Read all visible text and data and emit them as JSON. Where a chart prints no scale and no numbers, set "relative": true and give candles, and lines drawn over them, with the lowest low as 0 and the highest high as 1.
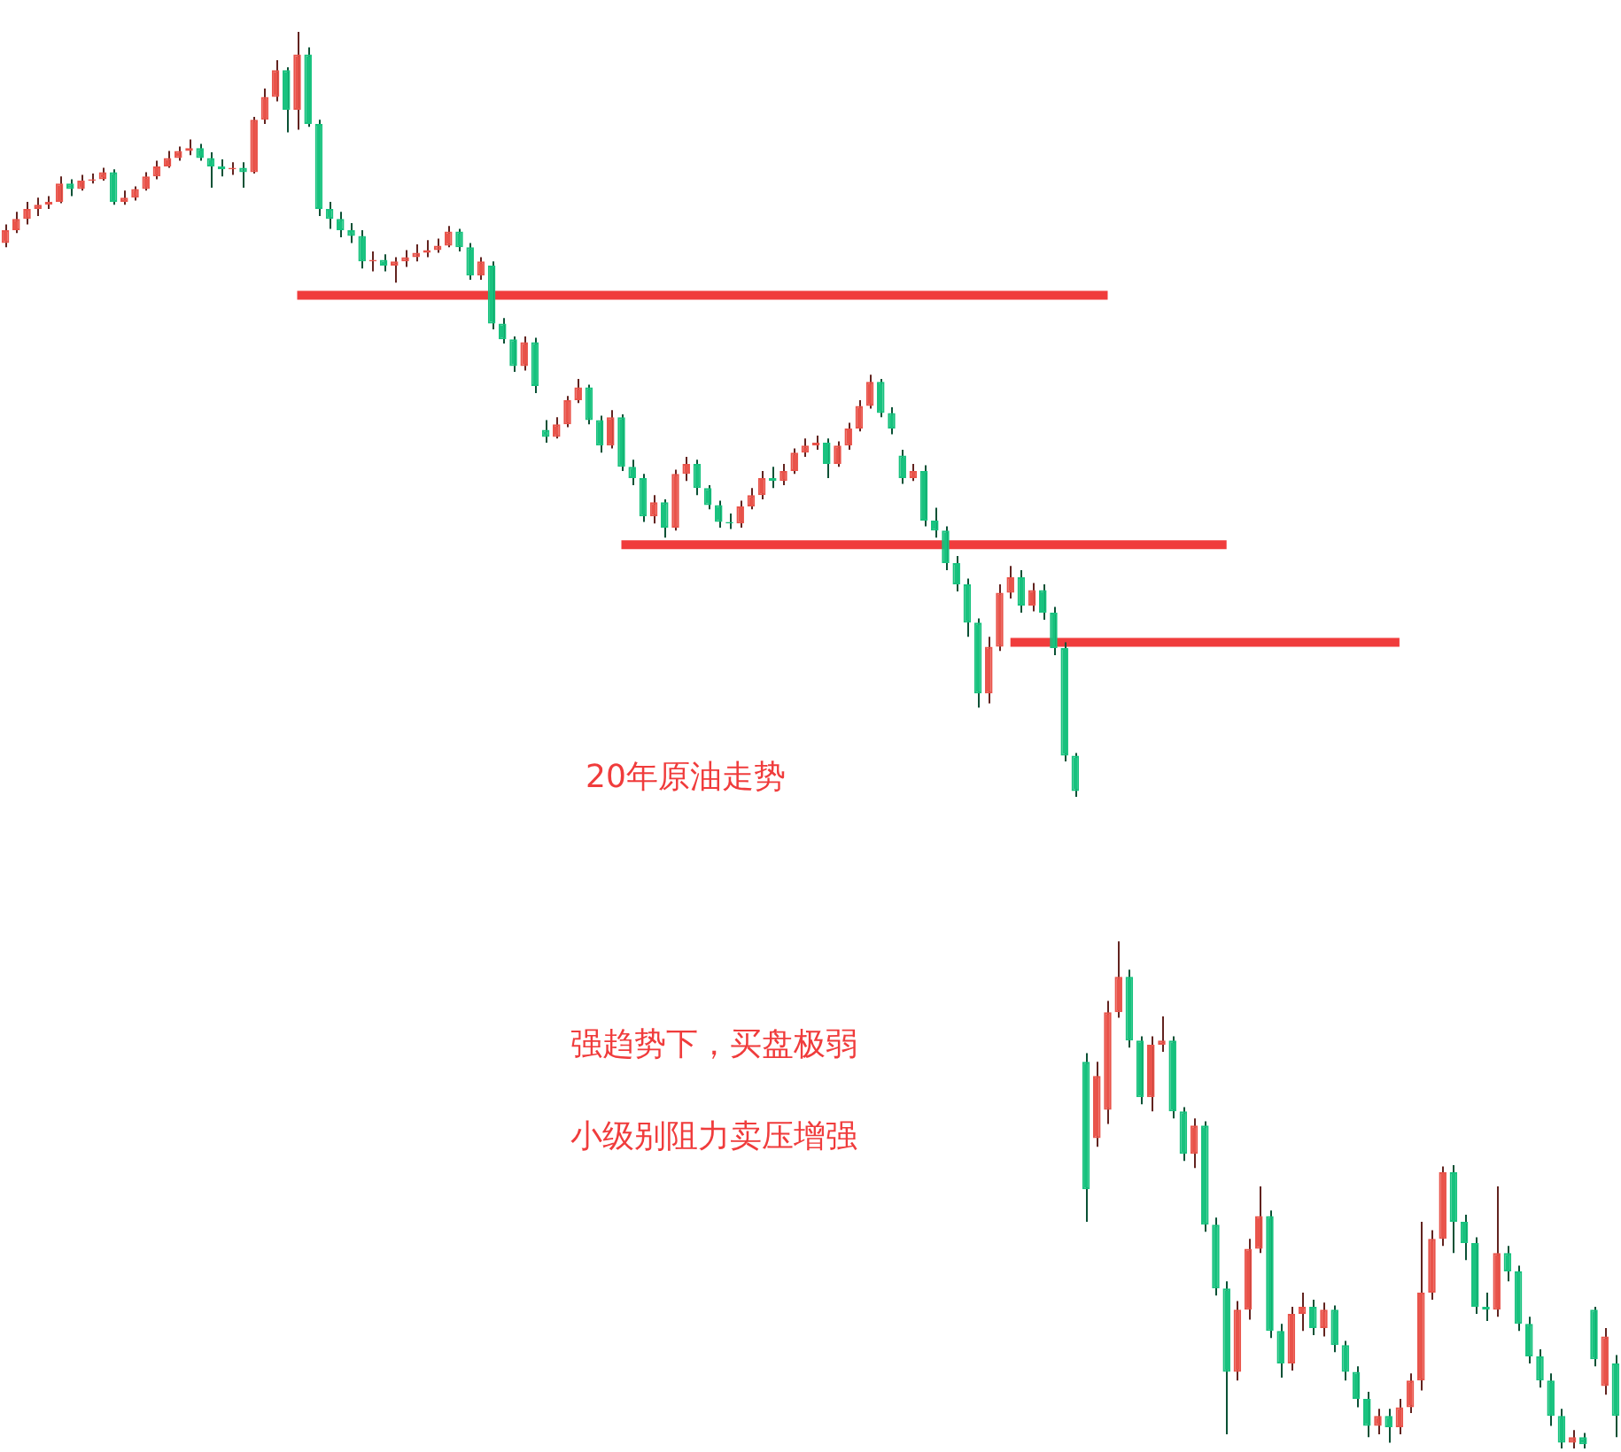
{
  "chart_data": {
    "type": "candlestick",
    "relative": true,
    "categories": [
      null,
      null,
      null,
      null,
      null,
      null,
      null,
      null,
      null,
      null,
      null,
      null,
      null,
      null,
      null,
      null,
      null,
      null,
      null,
      null,
      null,
      null,
      null,
      null,
      null,
      null,
      null,
      null,
      null,
      null,
      null,
      null,
      null,
      null,
      null,
      null,
      null,
      null,
      null,
      null,
      null,
      null,
      null,
      null,
      null,
      null,
      null,
      null,
      null,
      null,
      null,
      null,
      null,
      null,
      null,
      null,
      null,
      null,
      null,
      null,
      null,
      null,
      null,
      null,
      null,
      null,
      null,
      null,
      null,
      null,
      null,
      null,
      null,
      null,
      null,
      null,
      null,
      null,
      null,
      null,
      null,
      null,
      null,
      null,
      null,
      null,
      null,
      null,
      null,
      null,
      null,
      null,
      null,
      null,
      null,
      null,
      null,
      null,
      null,
      null,
      null,
      null,
      null,
      null,
      null,
      null,
      null,
      null,
      null,
      null,
      null,
      null,
      null,
      null,
      null,
      null,
      null,
      null,
      null,
      null,
      null,
      null,
      null,
      null,
      null,
      null,
      null,
      null,
      null,
      null,
      null,
      null,
      null,
      null,
      null,
      null,
      null,
      null,
      null,
      null,
      null,
      null,
      null,
      null,
      null,
      null,
      null,
      null,
      null,
      null
    ],
    "ohlc": [
      [
        0.851,
        0.864,
        0.848,
        0.86
      ],
      [
        0.86,
        0.873,
        0.858,
        0.868
      ],
      [
        0.868,
        0.88,
        0.864,
        0.875
      ],
      [
        0.875,
        0.883,
        0.87,
        0.878
      ],
      [
        0.878,
        0.884,
        0.875,
        0.88
      ],
      [
        0.88,
        0.898,
        0.879,
        0.893
      ],
      [
        0.893,
        0.896,
        0.884,
        0.889
      ],
      [
        0.889,
        0.899,
        0.888,
        0.895
      ],
      [
        0.895,
        0.9,
        0.893,
        0.896
      ],
      [
        0.896,
        0.904,
        0.895,
        0.901
      ],
      [
        0.901,
        0.903,
        0.878,
        0.88
      ],
      [
        0.88,
        0.888,
        0.878,
        0.883
      ],
      [
        0.883,
        0.891,
        0.881,
        0.889
      ],
      [
        0.889,
        0.901,
        0.888,
        0.898
      ],
      [
        0.898,
        0.909,
        0.896,
        0.905
      ],
      [
        0.905,
        0.916,
        0.904,
        0.911
      ],
      [
        0.911,
        0.919,
        0.909,
        0.916
      ],
      [
        0.916,
        0.924,
        0.913,
        0.918
      ],
      [
        0.918,
        0.921,
        0.909,
        0.911
      ],
      [
        0.911,
        0.915,
        0.89,
        0.905
      ],
      [
        0.905,
        0.91,
        0.898,
        0.903
      ],
      [
        0.903,
        0.908,
        0.899,
        0.904
      ],
      [
        0.904,
        0.908,
        0.89,
        0.901
      ],
      [
        0.901,
        0.94,
        0.9,
        0.938
      ],
      [
        0.938,
        0.96,
        0.935,
        0.954
      ],
      [
        0.954,
        0.98,
        0.951,
        0.973
      ],
      [
        0.973,
        0.975,
        0.929,
        0.945
      ],
      [
        0.945,
        1,
        0.931,
        0.984
      ],
      [
        0.984,
        0.989,
        0.933,
        0.935
      ],
      [
        0.935,
        0.938,
        0.87,
        0.875
      ],
      [
        0.875,
        0.88,
        0.861,
        0.868
      ],
      [
        0.868,
        0.873,
        0.855,
        0.86
      ],
      [
        0.86,
        0.865,
        0.851,
        0.856
      ],
      [
        0.856,
        0.86,
        0.833,
        0.838
      ],
      [
        0.838,
        0.845,
        0.831,
        0.839
      ],
      [
        0.839,
        0.843,
        0.831,
        0.835
      ],
      [
        0.835,
        0.841,
        0.823,
        0.838
      ],
      [
        0.838,
        0.846,
        0.834,
        0.841
      ],
      [
        0.841,
        0.85,
        0.838,
        0.844
      ],
      [
        0.844,
        0.853,
        0.841,
        0.846
      ],
      [
        0.846,
        0.854,
        0.844,
        0.849
      ],
      [
        0.849,
        0.863,
        0.848,
        0.859
      ],
      [
        0.859,
        0.861,
        0.845,
        0.848
      ],
      [
        0.848,
        0.851,
        0.825,
        0.828
      ],
      [
        0.828,
        0.841,
        0.825,
        0.838
      ],
      [
        0.835,
        0.838,
        0.79,
        0.794
      ],
      [
        0.794,
        0.798,
        0.78,
        0.783
      ],
      [
        0.783,
        0.785,
        0.76,
        0.764
      ],
      [
        0.764,
        0.785,
        0.761,
        0.781
      ],
      [
        0.781,
        0.784,
        0.745,
        0.75
      ],
      [
        0.719,
        0.726,
        0.71,
        0.714
      ],
      [
        0.714,
        0.728,
        0.713,
        0.723
      ],
      [
        0.723,
        0.743,
        0.721,
        0.74
      ],
      [
        0.74,
        0.755,
        0.738,
        0.749
      ],
      [
        0.749,
        0.751,
        0.723,
        0.726
      ],
      [
        0.726,
        0.729,
        0.703,
        0.708
      ],
      [
        0.708,
        0.733,
        0.706,
        0.728
      ],
      [
        0.728,
        0.73,
        0.69,
        0.693
      ],
      [
        0.693,
        0.698,
        0.68,
        0.685
      ],
      [
        0.685,
        0.688,
        0.654,
        0.658
      ],
      [
        0.658,
        0.673,
        0.653,
        0.668
      ],
      [
        0.668,
        0.67,
        0.643,
        0.65
      ],
      [
        0.65,
        0.691,
        0.648,
        0.688
      ],
      [
        0.688,
        0.7,
        0.683,
        0.695
      ],
      [
        0.695,
        0.698,
        0.673,
        0.678
      ],
      [
        0.678,
        0.68,
        0.663,
        0.666
      ],
      [
        0.666,
        0.669,
        0.65,
        0.654
      ],
      [
        0.654,
        0.66,
        0.649,
        0.653
      ],
      [
        0.653,
        0.669,
        0.65,
        0.665
      ],
      [
        0.665,
        0.678,
        0.663,
        0.673
      ],
      [
        0.673,
        0.69,
        0.67,
        0.685
      ],
      [
        0.685,
        0.693,
        0.678,
        0.683
      ],
      [
        0.683,
        0.695,
        0.68,
        0.69
      ],
      [
        0.69,
        0.706,
        0.688,
        0.703
      ],
      [
        0.703,
        0.713,
        0.7,
        0.708
      ],
      [
        0.708,
        0.715,
        0.705,
        0.71
      ],
      [
        0.71,
        0.713,
        0.685,
        0.695
      ],
      [
        0.695,
        0.711,
        0.693,
        0.708
      ],
      [
        0.708,
        0.724,
        0.705,
        0.72
      ],
      [
        0.72,
        0.74,
        0.718,
        0.736
      ],
      [
        0.736,
        0.758,
        0.734,
        0.753
      ],
      [
        0.753,
        0.755,
        0.728,
        0.731
      ],
      [
        0.731,
        0.735,
        0.716,
        0.72
      ],
      [
        0.701,
        0.705,
        0.681,
        0.685
      ],
      [
        0.685,
        0.695,
        0.683,
        0.69
      ],
      [
        0.69,
        0.694,
        0.651,
        0.655
      ],
      [
        0.655,
        0.664,
        0.643,
        0.648
      ],
      [
        0.648,
        0.651,
        0.62,
        0.625
      ],
      [
        0.625,
        0.63,
        0.605,
        0.61
      ],
      [
        0.61,
        0.614,
        0.573,
        0.583
      ],
      [
        0.583,
        0.586,
        0.523,
        0.533
      ],
      [
        0.533,
        0.573,
        0.526,
        0.566
      ],
      [
        0.566,
        0.61,
        0.563,
        0.604
      ],
      [
        0.604,
        0.623,
        0.6,
        0.615
      ],
      [
        0.615,
        0.62,
        0.59,
        0.595
      ],
      [
        0.595,
        0.611,
        0.591,
        0.606
      ],
      [
        0.606,
        0.61,
        0.585,
        0.59
      ],
      [
        0.59,
        0.594,
        0.56,
        0.565
      ],
      [
        0.565,
        0.569,
        0.485,
        0.489
      ],
      [
        0.489,
        0.491,
        0.46,
        0.464
      ],
      [
        0.273,
        0.279,
        0.16,
        0.183
      ],
      [
        0.219,
        0.273,
        0.213,
        0.263
      ],
      [
        0.239,
        0.316,
        0.229,
        0.308
      ],
      [
        0.308,
        0.358,
        0.304,
        0.333
      ],
      [
        0.333,
        0.338,
        0.283,
        0.288
      ],
      [
        0.288,
        0.291,
        0.243,
        0.248
      ],
      [
        0.248,
        0.291,
        0.238,
        0.285
      ],
      [
        0.285,
        0.305,
        0.28,
        0.288
      ],
      [
        0.288,
        0.291,
        0.233,
        0.238
      ],
      [
        0.238,
        0.241,
        0.203,
        0.208
      ],
      [
        0.208,
        0.233,
        0.198,
        0.228
      ],
      [
        0.228,
        0.231,
        0.153,
        0.158
      ],
      [
        0.158,
        0.163,
        0.108,
        0.113
      ],
      [
        0.113,
        0.118,
        0.01,
        0.054
      ],
      [
        0.054,
        0.104,
        0.048,
        0.098
      ],
      [
        0.098,
        0.148,
        0.091,
        0.141
      ],
      [
        0.141,
        0.185,
        0.138,
        0.164
      ],
      [
        0.164,
        0.168,
        0.078,
        0.083
      ],
      [
        0.083,
        0.088,
        0.05,
        0.06
      ],
      [
        0.06,
        0.1,
        0.055,
        0.095
      ],
      [
        0.095,
        0.11,
        0.083,
        0.1
      ],
      [
        0.1,
        0.105,
        0.08,
        0.085
      ],
      [
        0.085,
        0.103,
        0.079,
        0.098
      ],
      [
        0.098,
        0.101,
        0.068,
        0.073
      ],
      [
        0.073,
        0.076,
        0.048,
        0.054
      ],
      [
        0.054,
        0.058,
        0.029,
        0.035
      ],
      [
        0.035,
        0.04,
        0.008,
        0.016
      ],
      [
        0.016,
        0.028,
        0.01,
        0.023
      ],
      [
        0.023,
        0.028,
        0.004,
        0.015
      ],
      [
        0.015,
        0.035,
        0.01,
        0.029
      ],
      [
        0.029,
        0.053,
        0.025,
        0.048
      ],
      [
        0.048,
        0.16,
        0.041,
        0.11
      ],
      [
        0.11,
        0.154,
        0.105,
        0.148
      ],
      [
        0.148,
        0.199,
        0.143,
        0.195
      ],
      [
        0.195,
        0.2,
        0.138,
        0.16
      ],
      [
        0.16,
        0.165,
        0.133,
        0.145
      ],
      [
        0.145,
        0.149,
        0.095,
        0.1
      ],
      [
        0.1,
        0.11,
        0.09,
        0.098
      ],
      [
        0.098,
        0.185,
        0.093,
        0.138
      ],
      [
        0.138,
        0.143,
        0.118,
        0.125
      ],
      [
        0.125,
        0.129,
        0.083,
        0.088
      ],
      [
        0.088,
        0.093,
        0.06,
        0.065
      ],
      [
        0.065,
        0.07,
        0.043,
        0.048
      ],
      [
        0.048,
        0.053,
        0.016,
        0.023
      ],
      [
        0.023,
        0.028,
        0,
        0.004
      ],
      [
        0.004,
        0.013,
        0,
        0.008
      ],
      [
        0.008,
        0.011,
        0,
        0.003
      ],
      [
        0.098,
        0.1,
        0.058,
        0.063
      ],
      [
        0.044,
        0.085,
        0.038,
        0.079
      ],
      [
        0.06,
        0.066,
        0.008,
        0.023
      ]
    ],
    "colors": [
      "#e9534a",
      "#e9534a",
      "#e9534a",
      "#e9534a",
      "#e9534a",
      "#e9534a",
      "#17c27e",
      "#e9534a",
      "#e9534a",
      "#e9534a",
      "#17c27e",
      "#e9534a",
      "#e9534a",
      "#e9534a",
      "#e9534a",
      "#e9534a",
      "#e9534a",
      "#e9534a",
      "#17c27e",
      "#17c27e",
      "#17c27e",
      "#e9534a",
      "#17c27e",
      "#e9534a",
      "#e9534a",
      "#e9534a",
      "#17c27e",
      "#e9534a",
      "#17c27e",
      "#17c27e",
      "#17c27e",
      "#17c27e",
      "#17c27e",
      "#17c27e",
      "#e9534a",
      "#17c27e",
      "#e9534a",
      "#e9534a",
      "#e9534a",
      "#e9534a",
      "#e9534a",
      "#e9534a",
      "#17c27e",
      "#17c27e",
      "#e9534a",
      "#17c27e",
      "#17c27e",
      "#17c27e",
      "#e9534a",
      "#17c27e",
      "#17c27e",
      "#e9534a",
      "#e9534a",
      "#e9534a",
      "#17c27e",
      "#17c27e",
      "#e9534a",
      "#17c27e",
      "#17c27e",
      "#17c27e",
      "#e9534a",
      "#17c27e",
      "#e9534a",
      "#e9534a",
      "#17c27e",
      "#17c27e",
      "#17c27e",
      "#17c27e",
      "#e9534a",
      "#e9534a",
      "#e9534a",
      "#17c27e",
      "#e9534a",
      "#e9534a",
      "#e9534a",
      "#e9534a",
      "#17c27e",
      "#e9534a",
      "#e9534a",
      "#e9534a",
      "#e9534a",
      "#17c27e",
      "#17c27e",
      "#17c27e",
      "#e9534a",
      "#17c27e",
      "#17c27e",
      "#17c27e",
      "#17c27e",
      "#17c27e",
      "#17c27e",
      "#e9534a",
      "#e9534a",
      "#e9534a",
      "#17c27e",
      "#e9534a",
      "#17c27e",
      "#17c27e",
      "#17c27e",
      "#17c27e",
      "#17c27e",
      "#e9534a",
      "#e9534a",
      "#e9534a",
      "#17c27e",
      "#17c27e",
      "#e9534a",
      "#e9534a",
      "#17c27e",
      "#17c27e",
      "#e9534a",
      "#17c27e",
      "#17c27e",
      "#17c27e",
      "#e9534a",
      "#e9534a",
      "#e9534a",
      "#17c27e",
      "#17c27e",
      "#e9534a",
      "#e9534a",
      "#17c27e",
      "#e9534a",
      "#17c27e",
      "#17c27e",
      "#17c27e",
      "#17c27e",
      "#e9534a",
      "#17c27e",
      "#e9534a",
      "#e9534a",
      "#e9534a",
      "#e9534a",
      "#e9534a",
      "#17c27e",
      "#17c27e",
      "#17c27e",
      "#17c27e",
      "#e9534a",
      "#17c27e",
      "#17c27e",
      "#17c27e",
      "#17c27e",
      "#17c27e",
      "#17c27e",
      "#e9534a",
      "#17c27e",
      "#17c27e",
      "#e9534a",
      "#17c27e"
    ],
    "series": [
      {
        "type": "line",
        "color": "#f03c3c",
        "values": [
          null,
          null,
          null,
          null,
          null,
          null,
          null,
          null,
          null,
          null,
          null,
          null,
          null,
          null,
          null,
          null,
          null,
          null,
          null,
          null,
          null,
          null,
          null,
          null,
          null,
          null,
          null,
          0.814,
          0.814,
          0.814,
          0.814,
          0.814,
          0.814,
          0.814,
          0.814,
          0.814,
          0.814,
          0.814,
          0.814,
          0.814,
          0.814,
          0.814,
          0.814,
          0.814,
          0.814,
          0.814,
          0.814,
          0.814,
          0.814,
          0.814,
          0.814,
          0.814,
          0.814,
          0.814,
          0.814,
          0.814,
          0.814,
          0.814,
          0.814,
          0.814,
          0.814,
          0.814,
          0.814,
          0.814,
          0.814,
          0.814,
          0.814,
          0.814,
          0.814,
          0.814,
          0.814,
          0.814,
          0.814,
          0.814,
          0.814,
          0.814,
          0.814,
          0.814,
          0.814,
          0.814,
          0.814,
          0.814,
          0.814,
          0.814,
          0.814,
          0.814,
          0.814,
          0.814,
          0.814,
          0.814,
          0.814,
          0.814,
          0.814,
          0.814,
          0.814,
          0.814,
          0.814,
          0.814,
          0.814,
          0.814,
          0.814,
          0.814,
          0.814,
          null,
          null,
          null,
          null,
          null,
          null,
          null,
          null,
          null,
          null,
          null,
          null,
          null,
          null,
          null,
          null,
          null,
          null,
          null,
          null,
          null,
          null,
          null,
          null,
          null,
          null,
          null,
          null,
          null,
          null,
          null,
          null,
          null,
          null,
          null,
          null,
          null,
          null,
          null,
          null,
          null,
          null,
          null,
          null,
          null,
          null,
          null
        ]
      },
      {
        "type": "line",
        "color": "#f03c3c",
        "values": [
          null,
          null,
          null,
          null,
          null,
          null,
          null,
          null,
          null,
          null,
          null,
          null,
          null,
          null,
          null,
          null,
          null,
          null,
          null,
          null,
          null,
          null,
          null,
          null,
          null,
          null,
          null,
          null,
          null,
          null,
          null,
          null,
          null,
          null,
          null,
          null,
          null,
          null,
          null,
          null,
          null,
          null,
          null,
          null,
          null,
          null,
          null,
          null,
          null,
          null,
          null,
          null,
          null,
          null,
          null,
          null,
          null,
          0.638,
          0.638,
          0.638,
          0.638,
          0.638,
          0.638,
          0.638,
          0.638,
          0.638,
          0.638,
          0.638,
          0.638,
          0.638,
          0.638,
          0.638,
          0.638,
          0.638,
          0.638,
          0.638,
          0.638,
          0.638,
          0.638,
          0.638,
          0.638,
          0.638,
          0.638,
          0.638,
          0.638,
          0.638,
          0.638,
          0.638,
          0.638,
          0.638,
          0.638,
          0.638,
          0.638,
          0.638,
          0.638,
          0.638,
          0.638,
          0.638,
          0.638,
          0.638,
          0.638,
          0.638,
          0.638,
          0.638,
          0.638,
          0.638,
          0.638,
          0.638,
          0.638,
          0.638,
          0.638,
          0.638,
          0.638,
          0.638,
          null,
          null,
          null,
          null,
          null,
          null,
          null,
          null,
          null,
          null,
          null,
          null,
          null,
          null,
          null,
          null,
          null,
          null,
          null,
          null,
          null,
          null,
          null,
          null,
          null,
          null,
          null,
          null,
          null,
          null,
          null,
          null,
          null,
          null,
          null,
          null
        ]
      },
      {
        "type": "line",
        "color": "#f03c3c",
        "values": [
          null,
          null,
          null,
          null,
          null,
          null,
          null,
          null,
          null,
          null,
          null,
          null,
          null,
          null,
          null,
          null,
          null,
          null,
          null,
          null,
          null,
          null,
          null,
          null,
          null,
          null,
          null,
          null,
          null,
          null,
          null,
          null,
          null,
          null,
          null,
          null,
          null,
          null,
          null,
          null,
          null,
          null,
          null,
          null,
          null,
          null,
          null,
          null,
          null,
          null,
          null,
          null,
          null,
          null,
          null,
          null,
          null,
          null,
          null,
          null,
          null,
          null,
          null,
          null,
          null,
          null,
          null,
          null,
          null,
          null,
          null,
          null,
          null,
          null,
          null,
          null,
          null,
          null,
          null,
          null,
          null,
          null,
          null,
          null,
          null,
          null,
          null,
          null,
          null,
          null,
          null,
          null,
          null,
          0.569,
          0.569,
          0.569,
          0.569,
          0.569,
          0.569,
          0.569,
          0.569,
          0.569,
          0.569,
          0.569,
          0.569,
          0.569,
          0.569,
          0.569,
          0.569,
          0.569,
          0.569,
          0.569,
          0.569,
          0.569,
          0.569,
          0.569,
          0.569,
          0.569,
          0.569,
          0.569,
          0.569,
          0.569,
          0.569,
          0.569,
          0.569,
          0.569,
          0.569,
          0.569,
          0.569,
          0.569,
          null,
          null,
          null,
          null,
          null,
          null,
          null,
          null,
          null,
          null,
          null,
          null,
          null,
          null,
          null,
          null,
          null,
          null,
          null,
          null
        ]
      }
    ],
    "annotations": [
      "20年原油走势",
      "强趋势下，买盘极弱",
      "小级别阻力卖压增强"
    ]
  }
}
